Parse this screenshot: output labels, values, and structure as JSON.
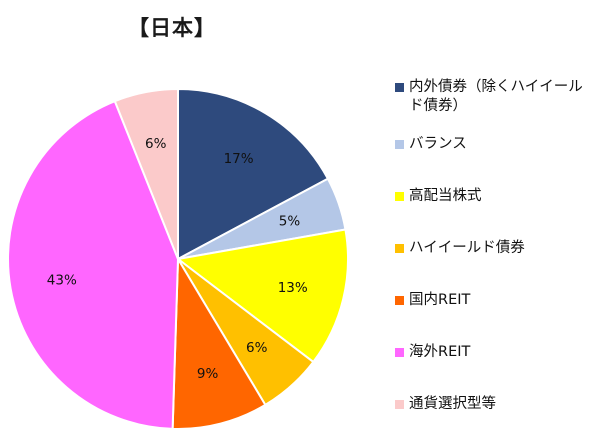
{
  "chart_data": {
    "type": "pie",
    "title": "【日本】",
    "slices": [
      {
        "label": "内外債券（除くハイイールド債券）",
        "value": 17,
        "data_label": "17%",
        "color": "#2e4a7d"
      },
      {
        "label": "バランス",
        "value": 5,
        "data_label": "5%",
        "color": "#b4c7e7"
      },
      {
        "label": "高配当株式",
        "value": 13,
        "data_label": "13%",
        "color": "#ffff00"
      },
      {
        "label": "ハイイールド債券",
        "value": 6,
        "data_label": "6%",
        "color": "#ffc000"
      },
      {
        "label": "国内REIT",
        "value": 9,
        "data_label": "9%",
        "color": "#ff6600"
      },
      {
        "label": "海外REIT",
        "value": 43,
        "data_label": "43%",
        "color": "#ff66ff"
      },
      {
        "label": "通貨選択型等",
        "value": 6,
        "data_label": "6%",
        "color": "#fbcaca"
      }
    ],
    "legend_position": "right",
    "start_angle": "12 o'clock",
    "direction": "clockwise"
  }
}
